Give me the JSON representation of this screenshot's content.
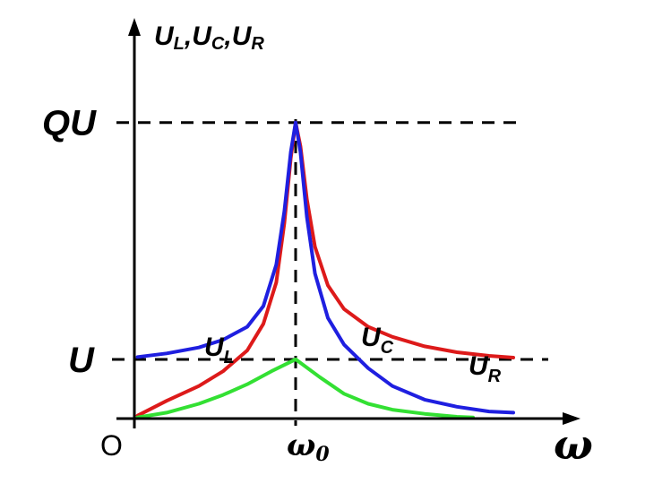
{
  "chart_data": {
    "type": "line",
    "title": "",
    "ylabel": {
      "main": "U",
      "parts": [
        {
          "sub": "L",
          "sep": ","
        },
        {
          "sub": "C",
          "sep": ","
        },
        {
          "sub": "R",
          "sep": ""
        }
      ]
    },
    "xlabel": "ω",
    "origin_label": "O",
    "x_tick": {
      "main": "ω",
      "sub": "0",
      "x": 1.0
    },
    "y_ticks": [
      {
        "label": "QU",
        "y": 5.0
      },
      {
        "label": "U",
        "y": 1.0
      }
    ],
    "xlim": [
      0,
      2.4
    ],
    "ylim": [
      0,
      6.6
    ],
    "series": [
      {
        "name": "U_L",
        "label": {
          "main": "U",
          "sub": "L"
        },
        "color": "#1f1fe0",
        "x": [
          0.02,
          0.2,
          0.4,
          0.55,
          0.7,
          0.8,
          0.88,
          0.93,
          0.97,
          1.0,
          1.03,
          1.07,
          1.12,
          1.2,
          1.3,
          1.45,
          1.6,
          1.8,
          2.0,
          2.2,
          2.35
        ],
        "y": [
          1.04,
          1.1,
          1.2,
          1.33,
          1.55,
          1.9,
          2.6,
          3.5,
          4.5,
          5.0,
          4.5,
          3.4,
          2.45,
          1.7,
          1.25,
          0.85,
          0.55,
          0.32,
          0.2,
          0.12,
          0.1
        ]
      },
      {
        "name": "U_C",
        "label": {
          "main": "U",
          "sub": "C"
        },
        "color": "#dd1a1a",
        "x": [
          0.02,
          0.2,
          0.4,
          0.55,
          0.7,
          0.8,
          0.88,
          0.93,
          0.97,
          1.0,
          1.03,
          1.07,
          1.12,
          1.2,
          1.3,
          1.45,
          1.6,
          1.8,
          2.0,
          2.2,
          2.35
        ],
        "y": [
          0.05,
          0.3,
          0.55,
          0.8,
          1.15,
          1.6,
          2.3,
          3.3,
          4.4,
          5.0,
          4.6,
          3.7,
          2.9,
          2.25,
          1.85,
          1.55,
          1.38,
          1.22,
          1.12,
          1.06,
          1.03
        ]
      },
      {
        "name": "U_R",
        "label": {
          "main": "U",
          "sub": "R"
        },
        "color": "#33e033",
        "x": [
          0.02,
          0.2,
          0.4,
          0.55,
          0.7,
          0.85,
          1.0,
          1.15,
          1.3,
          1.45,
          1.6,
          1.8,
          2.0,
          2.1
        ],
        "y": [
          0.02,
          0.1,
          0.25,
          0.4,
          0.58,
          0.8,
          1.0,
          0.7,
          0.42,
          0.25,
          0.15,
          0.08,
          0.03,
          0.02
        ]
      }
    ],
    "grid": false,
    "legend": "none"
  }
}
